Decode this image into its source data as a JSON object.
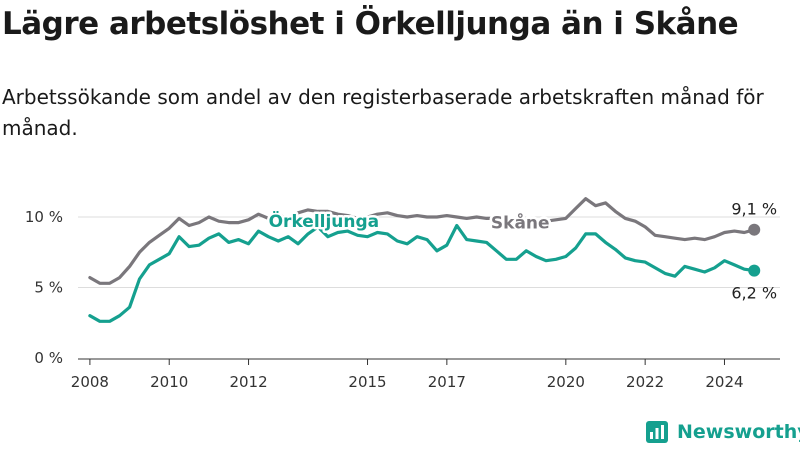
{
  "title": "Lägre arbetslöshet i Örkelljunga än i Skåne",
  "subtitle": "Arbetssökande som andel av den registerbaserade arbetskraften månad för månad.",
  "brand": "Newsworthy",
  "colors": {
    "orkelljunga": "#15a08f",
    "skane": "#7a777c",
    "grid": "#dddddd",
    "axis": "#333333"
  },
  "chart_data": {
    "type": "line",
    "title": "Lägre arbetslöshet i Örkelljunga än i Skåne",
    "ylim": [
      0,
      11
    ],
    "xlim": [
      2007.7,
      2025.4
    ],
    "y_ticks": [
      0,
      5,
      10
    ],
    "y_tick_labels": [
      "0 %",
      "5 %",
      "10 %"
    ],
    "x_ticks": [
      2008,
      2010,
      2012,
      2015,
      2017,
      2020,
      2022,
      2024
    ],
    "x_tick_labels": [
      "2008",
      "2010",
      "2012",
      "2015",
      "2017",
      "2020",
      "2022",
      "2024"
    ],
    "series": [
      {
        "name": "Skåne",
        "label": "Skåne",
        "color": "#7a777c",
        "end_label": "9,1 %",
        "x": [
          2008.0,
          2008.25,
          2008.5,
          2008.75,
          2009.0,
          2009.25,
          2009.5,
          2009.75,
          2010.0,
          2010.25,
          2010.5,
          2010.75,
          2011.0,
          2011.25,
          2011.5,
          2011.75,
          2012.0,
          2012.25,
          2012.5,
          2012.75,
          2013.0,
          2013.25,
          2013.5,
          2013.75,
          2014.0,
          2014.25,
          2014.5,
          2014.75,
          2015.0,
          2015.25,
          2015.5,
          2015.75,
          2016.0,
          2016.25,
          2016.5,
          2016.75,
          2017.0,
          2017.25,
          2017.5,
          2017.75,
          2018.0,
          2018.25,
          2018.5,
          2018.75,
          2019.0,
          2019.25,
          2019.5,
          2019.75,
          2020.0,
          2020.25,
          2020.5,
          2020.75,
          2021.0,
          2021.25,
          2021.5,
          2021.75,
          2022.0,
          2022.25,
          2022.5,
          2022.75,
          2023.0,
          2023.25,
          2023.5,
          2023.75,
          2024.0,
          2024.25,
          2024.5,
          2024.75
        ],
        "values": [
          5.7,
          5.3,
          5.3,
          5.7,
          6.5,
          7.5,
          8.2,
          8.7,
          9.2,
          9.9,
          9.4,
          9.6,
          10.0,
          9.7,
          9.6,
          9.6,
          9.8,
          10.2,
          9.9,
          10.2,
          9.8,
          10.3,
          10.5,
          10.4,
          10.4,
          10.2,
          10.1,
          9.9,
          10.0,
          10.2,
          10.3,
          10.1,
          10.0,
          10.1,
          10.0,
          10.0,
          10.1,
          10.0,
          9.9,
          10.0,
          9.9,
          9.9,
          9.8,
          9.9,
          9.6,
          9.6,
          9.7,
          9.8,
          9.9,
          10.6,
          11.3,
          10.8,
          11.0,
          10.4,
          9.9,
          9.7,
          9.3,
          8.7,
          8.6,
          8.5,
          8.4,
          8.5,
          8.4,
          8.6,
          8.9,
          9.0,
          8.9,
          9.1
        ]
      },
      {
        "name": "Örkelljunga",
        "label": "Örkelljunga",
        "color": "#15a08f",
        "end_label": "6,2 %",
        "x": [
          2008.0,
          2008.25,
          2008.5,
          2008.75,
          2009.0,
          2009.25,
          2009.5,
          2009.75,
          2010.0,
          2010.25,
          2010.5,
          2010.75,
          2011.0,
          2011.25,
          2011.5,
          2011.75,
          2012.0,
          2012.25,
          2012.5,
          2012.75,
          2013.0,
          2013.25,
          2013.5,
          2013.75,
          2014.0,
          2014.25,
          2014.5,
          2014.75,
          2015.0,
          2015.25,
          2015.5,
          2015.75,
          2016.0,
          2016.25,
          2016.5,
          2016.75,
          2017.0,
          2017.25,
          2017.5,
          2017.75,
          2018.0,
          2018.25,
          2018.5,
          2018.75,
          2019.0,
          2019.25,
          2019.5,
          2019.75,
          2020.0,
          2020.25,
          2020.5,
          2020.75,
          2021.0,
          2021.25,
          2021.5,
          2021.75,
          2022.0,
          2022.25,
          2022.5,
          2022.75,
          2023.0,
          2023.25,
          2023.5,
          2023.75,
          2024.0,
          2024.25,
          2024.5,
          2024.75
        ],
        "values": [
          3.0,
          2.6,
          2.6,
          3.0,
          3.6,
          5.6,
          6.6,
          7.0,
          7.4,
          8.6,
          7.9,
          8.0,
          8.5,
          8.8,
          8.2,
          8.4,
          8.1,
          9.0,
          8.6,
          8.3,
          8.6,
          8.1,
          8.8,
          9.3,
          8.6,
          8.9,
          9.0,
          8.7,
          8.6,
          8.9,
          8.8,
          8.3,
          8.1,
          8.6,
          8.4,
          7.6,
          8.0,
          9.4,
          8.4,
          8.3,
          8.2,
          7.6,
          7.0,
          7.0,
          7.6,
          7.2,
          6.9,
          7.0,
          7.2,
          7.8,
          8.8,
          8.8,
          8.2,
          7.7,
          7.1,
          6.9,
          6.8,
          6.4,
          6.0,
          5.8,
          6.5,
          6.3,
          6.1,
          6.4,
          6.9,
          6.6,
          6.3,
          6.2
        ]
      }
    ]
  }
}
